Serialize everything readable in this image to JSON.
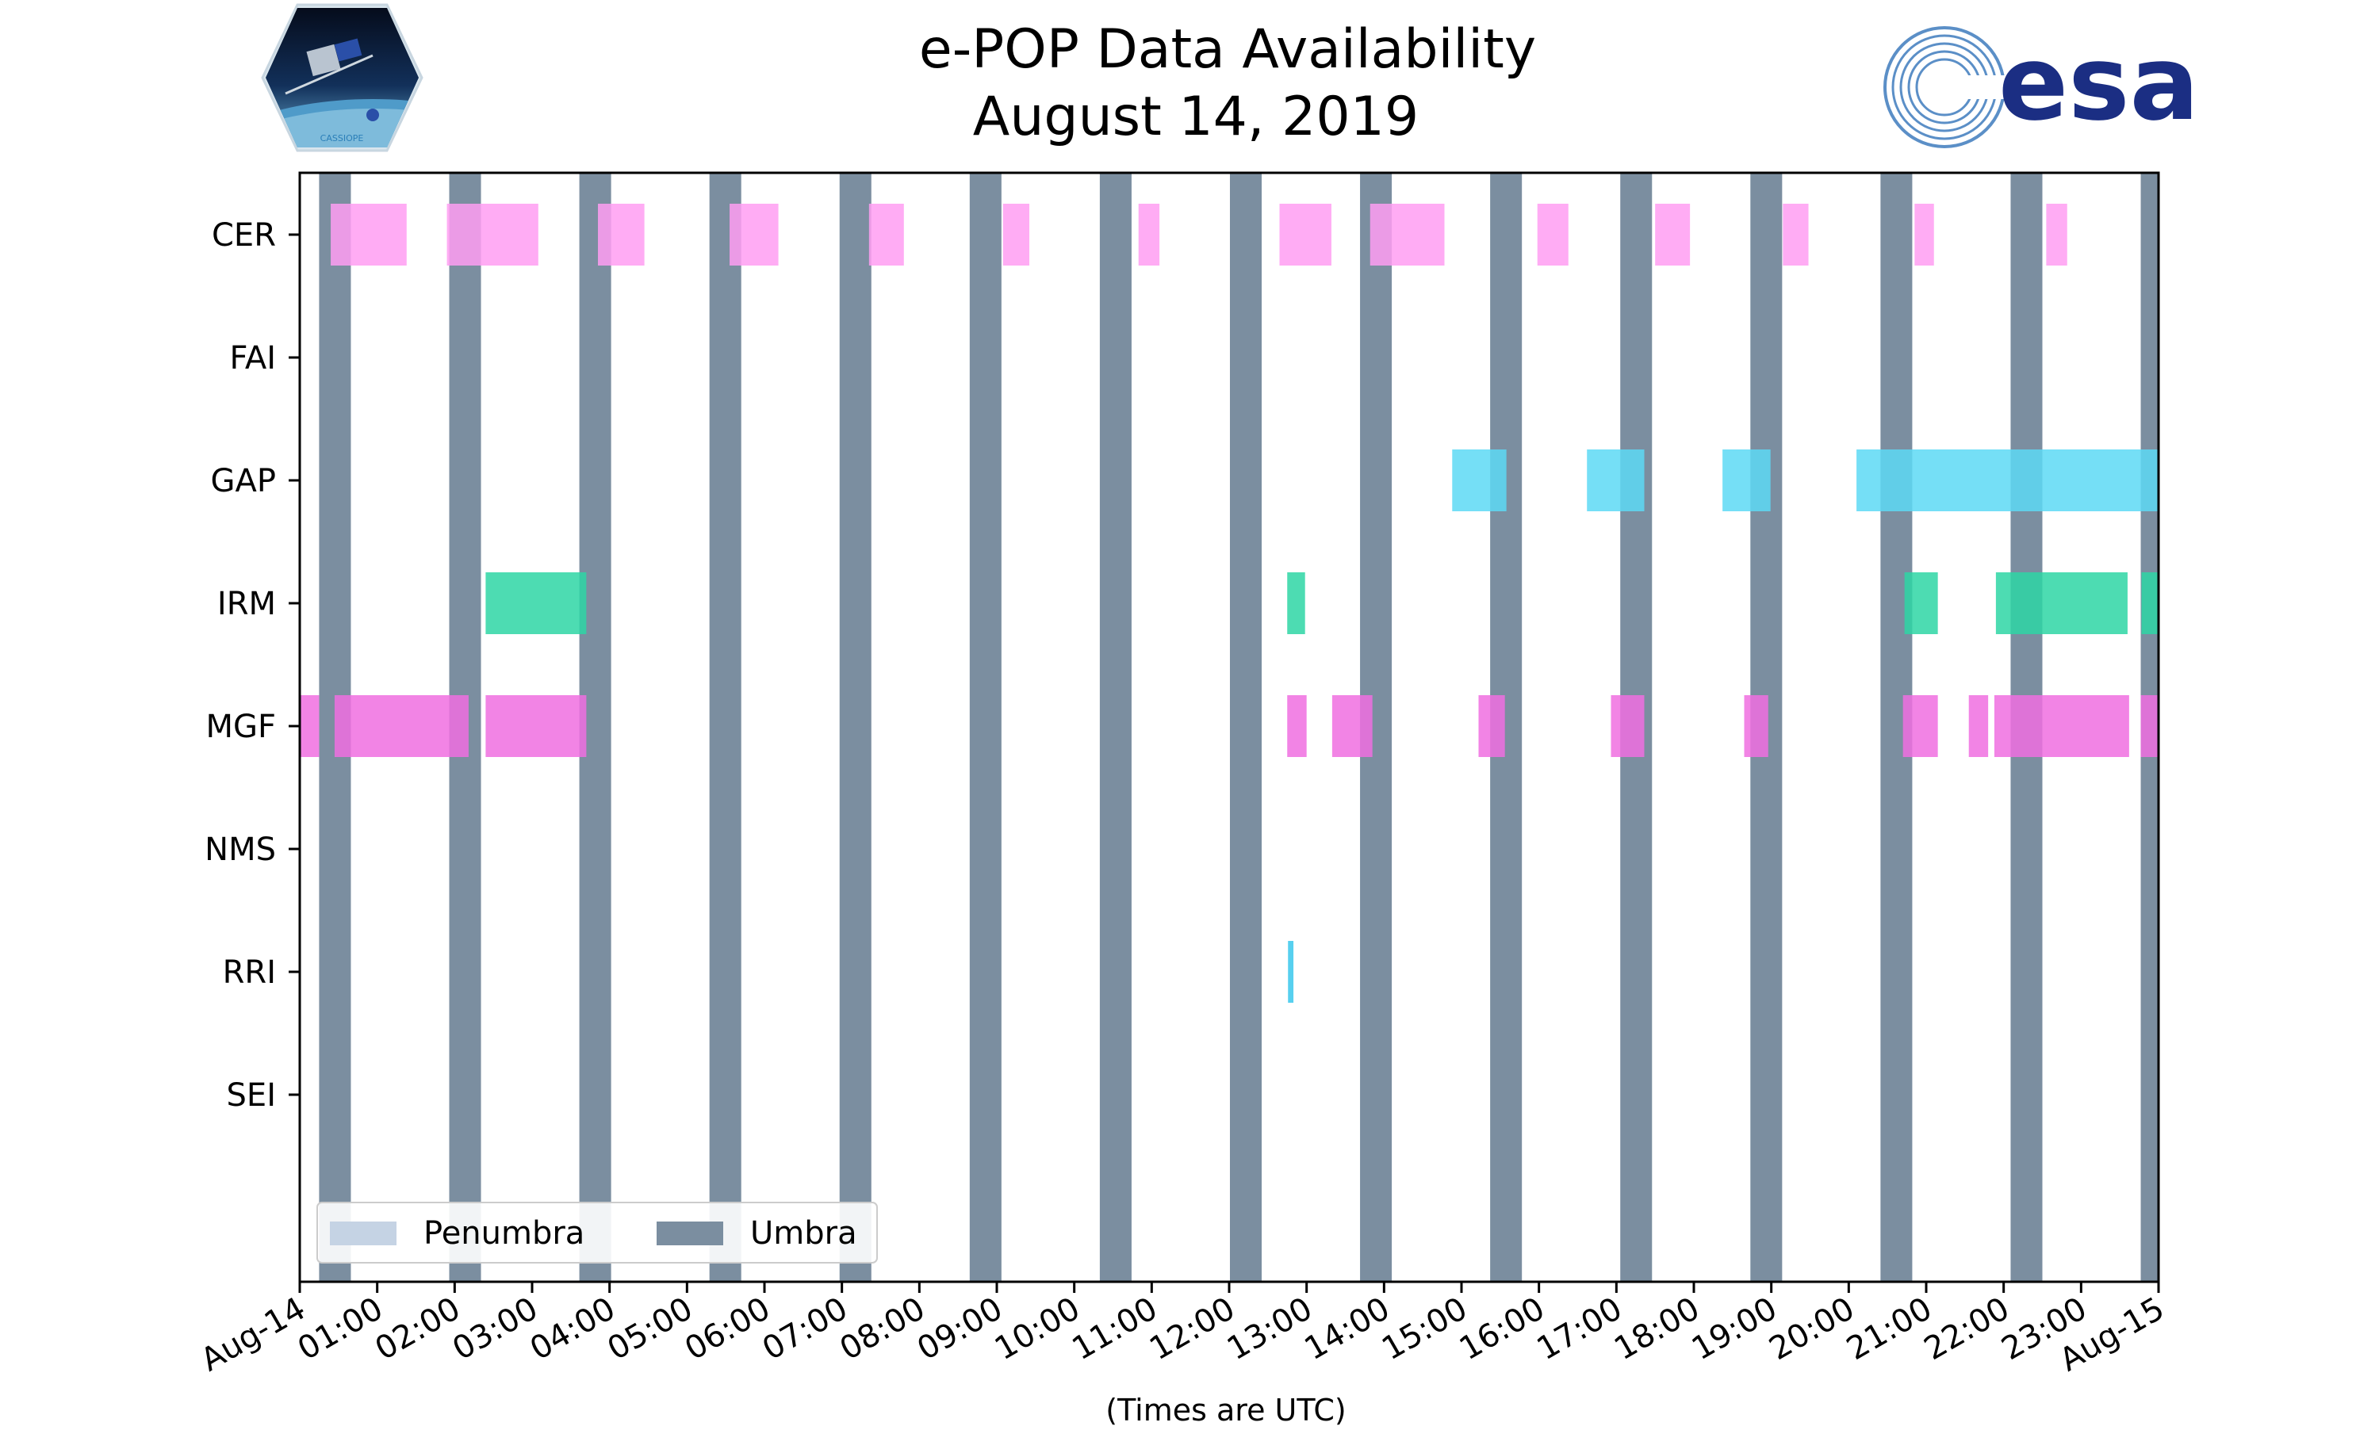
{
  "chart_data": {
    "type": "bar",
    "orientation": "horizontal-timeline",
    "title_lines": [
      "e-POP Data Availability",
      "August 14, 2019"
    ],
    "xlabel": "(Times are UTC)",
    "ylabel": "",
    "x_range_hours": [
      0,
      24
    ],
    "x_ticks": [
      {
        "hour": 0,
        "label": "Aug-14"
      },
      {
        "hour": 1,
        "label": "01:00"
      },
      {
        "hour": 2,
        "label": "02:00"
      },
      {
        "hour": 3,
        "label": "03:00"
      },
      {
        "hour": 4,
        "label": "04:00"
      },
      {
        "hour": 5,
        "label": "05:00"
      },
      {
        "hour": 6,
        "label": "06:00"
      },
      {
        "hour": 7,
        "label": "07:00"
      },
      {
        "hour": 8,
        "label": "08:00"
      },
      {
        "hour": 9,
        "label": "09:00"
      },
      {
        "hour": 10,
        "label": "10:00"
      },
      {
        "hour": 11,
        "label": "11:00"
      },
      {
        "hour": 12,
        "label": "12:00"
      },
      {
        "hour": 13,
        "label": "13:00"
      },
      {
        "hour": 14,
        "label": "14:00"
      },
      {
        "hour": 15,
        "label": "15:00"
      },
      {
        "hour": 16,
        "label": "16:00"
      },
      {
        "hour": 17,
        "label": "17:00"
      },
      {
        "hour": 18,
        "label": "18:00"
      },
      {
        "hour": 19,
        "label": "19:00"
      },
      {
        "hour": 20,
        "label": "20:00"
      },
      {
        "hour": 21,
        "label": "21:00"
      },
      {
        "hour": 22,
        "label": "22:00"
      },
      {
        "hour": 23,
        "label": "23:00"
      },
      {
        "hour": 24,
        "label": "Aug-15"
      }
    ],
    "instruments": [
      "CER",
      "FAI",
      "GAP",
      "IRM",
      "MGF",
      "NMS",
      "RRI",
      "SEI"
    ],
    "colors": {
      "CER": "#ff9ef2",
      "FAI": "#7fd9f0",
      "GAP": "#5dd9f4",
      "IRM": "#2ed6a4",
      "MGF": "#f06fe0",
      "NMS": "#aaaaaa",
      "RRI": "#3ac8ec",
      "SEI": "#aaaaaa",
      "umbra": "#7b8ea0",
      "penumbra": "#c5d3e4"
    },
    "umbra": [
      [
        0.25,
        0.66
      ],
      [
        1.93,
        2.34
      ],
      [
        3.61,
        4.02
      ],
      [
        5.29,
        5.7
      ],
      [
        6.97,
        7.38
      ],
      [
        8.65,
        9.06
      ],
      [
        10.33,
        10.74
      ],
      [
        12.01,
        12.42
      ],
      [
        13.69,
        14.1
      ],
      [
        15.37,
        15.78
      ],
      [
        17.05,
        17.46
      ],
      [
        18.73,
        19.14
      ],
      [
        20.41,
        20.82
      ],
      [
        22.09,
        22.5
      ],
      [
        23.77,
        24.0
      ]
    ],
    "segments": {
      "CER": [
        [
          0.4,
          1.38
        ],
        [
          1.9,
          3.08
        ],
        [
          3.85,
          4.45
        ],
        [
          5.55,
          6.18
        ],
        [
          7.35,
          7.8
        ],
        [
          9.08,
          9.42
        ],
        [
          10.83,
          11.1
        ],
        [
          12.65,
          13.32
        ],
        [
          13.82,
          14.78
        ],
        [
          15.98,
          16.38
        ],
        [
          17.5,
          17.95
        ],
        [
          19.15,
          19.48
        ],
        [
          20.85,
          21.1
        ],
        [
          22.55,
          22.82
        ]
      ],
      "FAI": [],
      "GAP": [
        [
          14.88,
          15.58
        ],
        [
          16.62,
          17.36
        ],
        [
          18.37,
          18.99
        ],
        [
          20.1,
          24.0
        ]
      ],
      "IRM": [
        [
          2.4,
          3.7
        ],
        [
          12.75,
          12.98
        ],
        [
          20.72,
          21.15
        ],
        [
          21.9,
          23.6
        ],
        [
          23.78,
          24.0
        ]
      ],
      "MGF": [
        [
          0.0,
          0.25
        ],
        [
          0.45,
          2.18
        ],
        [
          2.4,
          3.7
        ],
        [
          12.75,
          13.0
        ],
        [
          13.33,
          13.85
        ],
        [
          15.22,
          15.56
        ],
        [
          16.93,
          17.36
        ],
        [
          18.65,
          18.96
        ],
        [
          20.7,
          21.15
        ],
        [
          21.55,
          21.8
        ],
        [
          21.88,
          23.62
        ],
        [
          23.77,
          24.0
        ]
      ],
      "NMS": [],
      "RRI": [
        [
          12.76,
          12.83
        ]
      ],
      "SEI": []
    },
    "legend": {
      "placement": "lower-left",
      "entries": [
        {
          "name": "Penumbra",
          "color_key": "penumbra"
        },
        {
          "name": "Umbra",
          "color_key": "umbra"
        }
      ]
    },
    "logos": {
      "left": "CASSIOPE",
      "right": "esa"
    }
  }
}
